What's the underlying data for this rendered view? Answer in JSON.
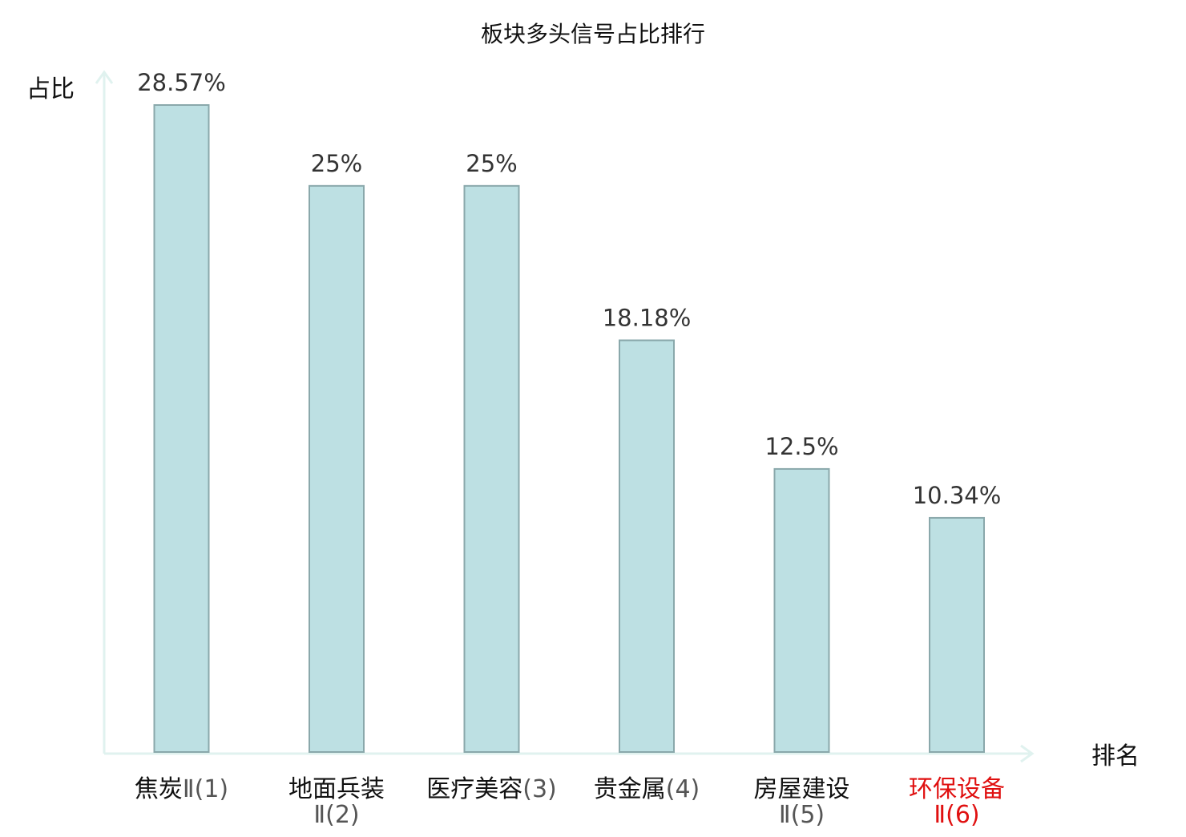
{
  "chart_data": {
    "type": "bar",
    "title": "板块多头信号占比排行",
    "ylabel": "占比",
    "xlabel": "排名",
    "categories": [
      {
        "name": "焦炭",
        "rank": "Ⅱ(1)",
        "highlight": false
      },
      {
        "name": "地面兵装",
        "rank": "Ⅱ(2)",
        "highlight": false
      },
      {
        "name": "医疗美容",
        "rank": "(3)",
        "highlight": false
      },
      {
        "name": "贵金属",
        "rank": "(4)",
        "highlight": false
      },
      {
        "name": "房屋建设",
        "rank": "Ⅱ(5)",
        "highlight": false
      },
      {
        "name": "环保设备",
        "rank": "Ⅱ(6)",
        "highlight": true
      }
    ],
    "values": [
      28.57,
      25,
      25,
      18.18,
      12.5,
      10.34
    ],
    "value_labels": [
      "28.57%",
      "25%",
      "25%",
      "18.18%",
      "12.5%",
      "10.34%"
    ],
    "ylim": [
      0,
      28.57
    ],
    "grid": false,
    "colors": {
      "bar_fill": "#bde0e3",
      "bar_stroke": "#8aa8ab",
      "axis": "#e0f2ef",
      "text": "#111111",
      "value_text": "#333333",
      "rank_text": "#555555",
      "highlight": "#e01010"
    }
  }
}
